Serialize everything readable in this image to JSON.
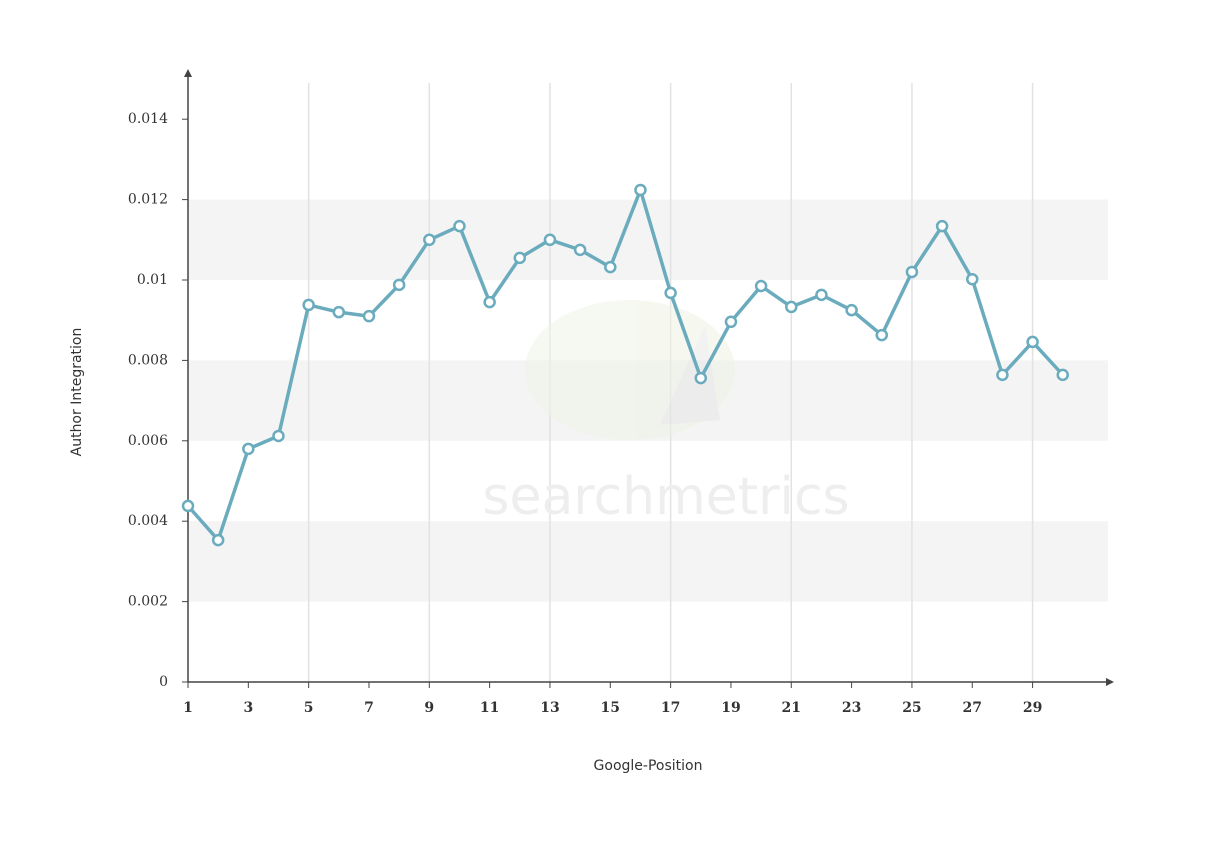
{
  "chart_data": {
    "type": "line",
    "x_label": "Google-Position",
    "y_label": "Author Integration",
    "watermark": "searchmetrics",
    "x": [
      1,
      2,
      3,
      4,
      5,
      6,
      7,
      8,
      9,
      10,
      11,
      12,
      13,
      14,
      15,
      16,
      17,
      18,
      19,
      20,
      21,
      22,
      23,
      24,
      25,
      26,
      27,
      28,
      29,
      30
    ],
    "series": [
      {
        "name": "Author Integration",
        "color": "#6aabbd",
        "values": [
          0.00438,
          0.00353,
          0.0058,
          0.00612,
          0.00938,
          0.0092,
          0.0091,
          0.00988,
          0.011,
          0.01134,
          0.00945,
          0.01055,
          0.011,
          0.01075,
          0.01032,
          0.01224,
          0.00968,
          0.00756,
          0.00896,
          0.00985,
          0.00933,
          0.00963,
          0.00925,
          0.00863,
          0.0102,
          0.01134,
          0.01002,
          0.00764,
          0.00846,
          0.00764
        ]
      }
    ],
    "xlim": [
      1,
      31.5
    ],
    "xticks": [
      1,
      3,
      5,
      7,
      9,
      11,
      13,
      15,
      17,
      19,
      21,
      23,
      25,
      27,
      29
    ],
    "ylim": [
      0,
      0.015
    ],
    "yticks": [
      0,
      0.002,
      0.004,
      0.006,
      0.008,
      0.01,
      0.012,
      0.014
    ],
    "grid": true
  }
}
